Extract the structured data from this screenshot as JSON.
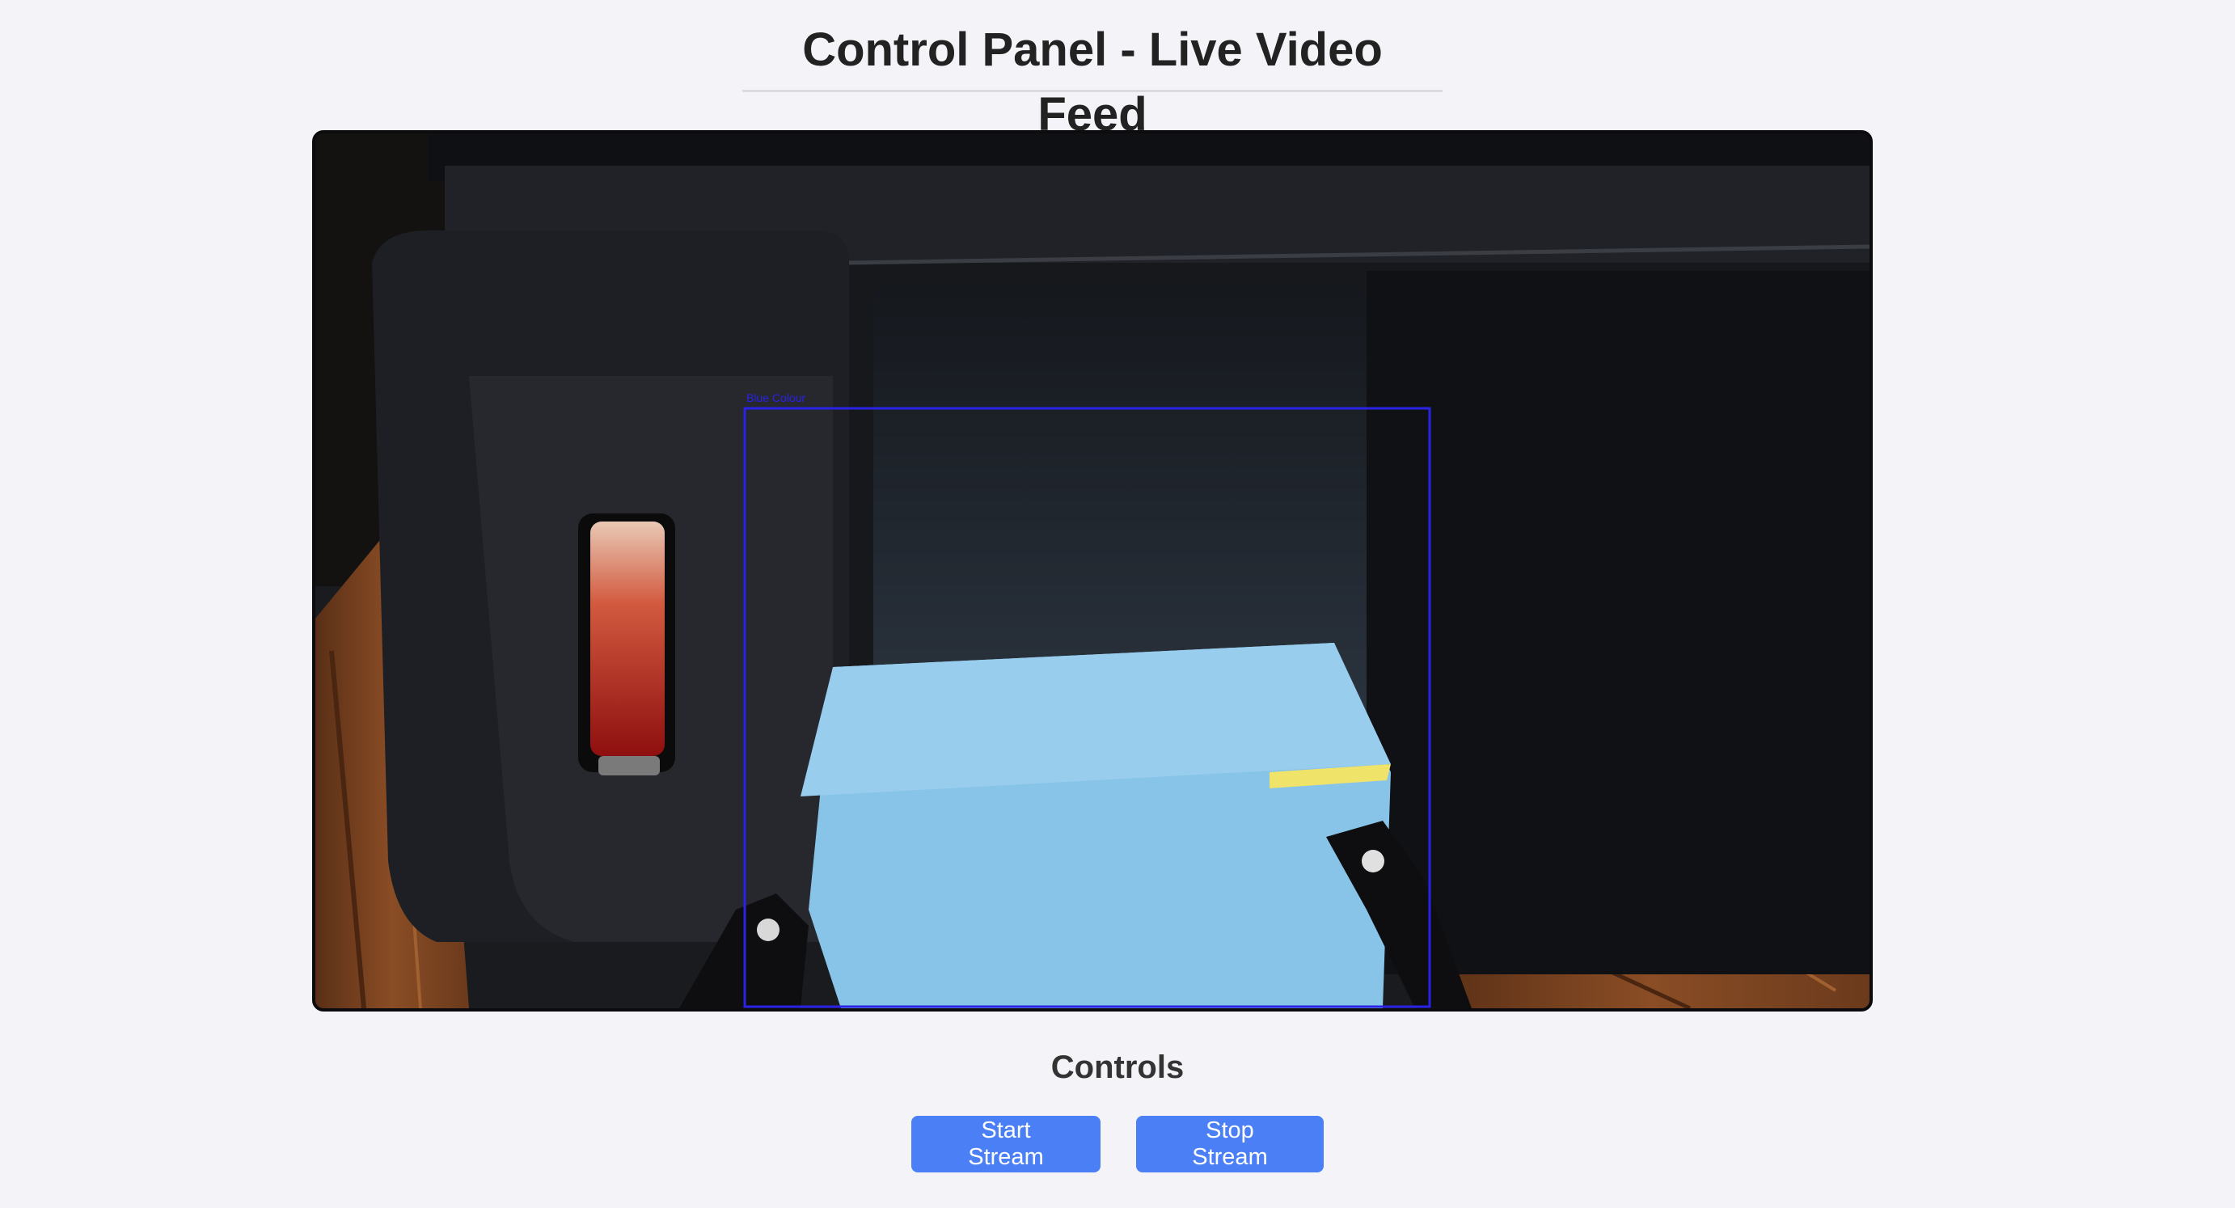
{
  "header": {
    "title": "Control Panel - Live Video Feed"
  },
  "video": {
    "detection_label": "Blue Colour",
    "box_color": "#2a22e6"
  },
  "controls": {
    "title": "Controls",
    "start_label": "Start Stream",
    "stop_label": "Stop Stream",
    "accent": "#4b7ff5"
  }
}
